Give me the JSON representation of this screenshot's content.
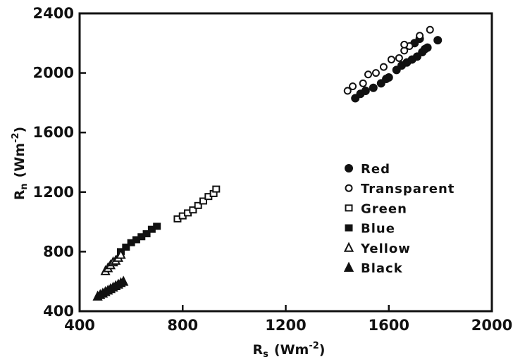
{
  "chart_data": {
    "type": "scatter",
    "title": "",
    "xlabel": {
      "main": "R",
      "sub": "s",
      "unit_open": "(Wm",
      "unit_exp": "-2",
      "unit_close": ")"
    },
    "ylabel": {
      "main": "R",
      "sub": "n",
      "unit_open": "(Wm",
      "unit_exp": "-2",
      "unit_close": ")"
    },
    "xlim": [
      400,
      2000
    ],
    "ylim": [
      400,
      2400
    ],
    "xticks": [
      "400",
      "800",
      "1200",
      "1600",
      "2000"
    ],
    "yticks": [
      "400",
      "800",
      "1200",
      "1600",
      "2000",
      "2400"
    ],
    "grid": false,
    "legend_position": "right-middle",
    "series": [
      {
        "name": "Red",
        "marker": "filled-circle",
        "x": [
          1470,
          1490,
          1510,
          1540,
          1570,
          1590,
          1600,
          1630,
          1650,
          1670,
          1690,
          1710,
          1730,
          1750,
          1790,
          1700,
          1720,
          1740
        ],
        "y": [
          1830,
          1860,
          1880,
          1900,
          1930,
          1960,
          1970,
          2020,
          2050,
          2070,
          2090,
          2110,
          2140,
          2170,
          2220,
          2200,
          2230,
          2160
        ]
      },
      {
        "name": "Transparent",
        "marker": "open-circle",
        "x": [
          1440,
          1460,
          1500,
          1520,
          1550,
          1580,
          1610,
          1640,
          1660,
          1680,
          1720,
          1760,
          1660
        ],
        "y": [
          1880,
          1910,
          1930,
          1990,
          2000,
          2040,
          2090,
          2100,
          2150,
          2180,
          2250,
          2290,
          2190
        ]
      },
      {
        "name": "Green",
        "marker": "open-square",
        "x": [
          780,
          800,
          820,
          840,
          860,
          880,
          900,
          920,
          930
        ],
        "y": [
          1020,
          1040,
          1060,
          1080,
          1110,
          1140,
          1170,
          1190,
          1220
        ]
      },
      {
        "name": "Blue",
        "marker": "filled-square",
        "x": [
          560,
          580,
          600,
          620,
          640,
          660,
          680,
          700
        ],
        "y": [
          800,
          830,
          860,
          880,
          900,
          920,
          950,
          970
        ]
      },
      {
        "name": "Yellow",
        "marker": "open-triangle",
        "x": [
          500,
          510,
          520,
          530,
          540,
          550,
          560
        ],
        "y": [
          670,
          690,
          710,
          730,
          740,
          760,
          780
        ]
      },
      {
        "name": "Black",
        "marker": "filled-triangle",
        "x": [
          470,
          480,
          490,
          500,
          510,
          520,
          530,
          540,
          550,
          560,
          570
        ],
        "y": [
          500,
          510,
          520,
          530,
          540,
          550,
          560,
          570,
          580,
          590,
          600
        ]
      }
    ]
  }
}
